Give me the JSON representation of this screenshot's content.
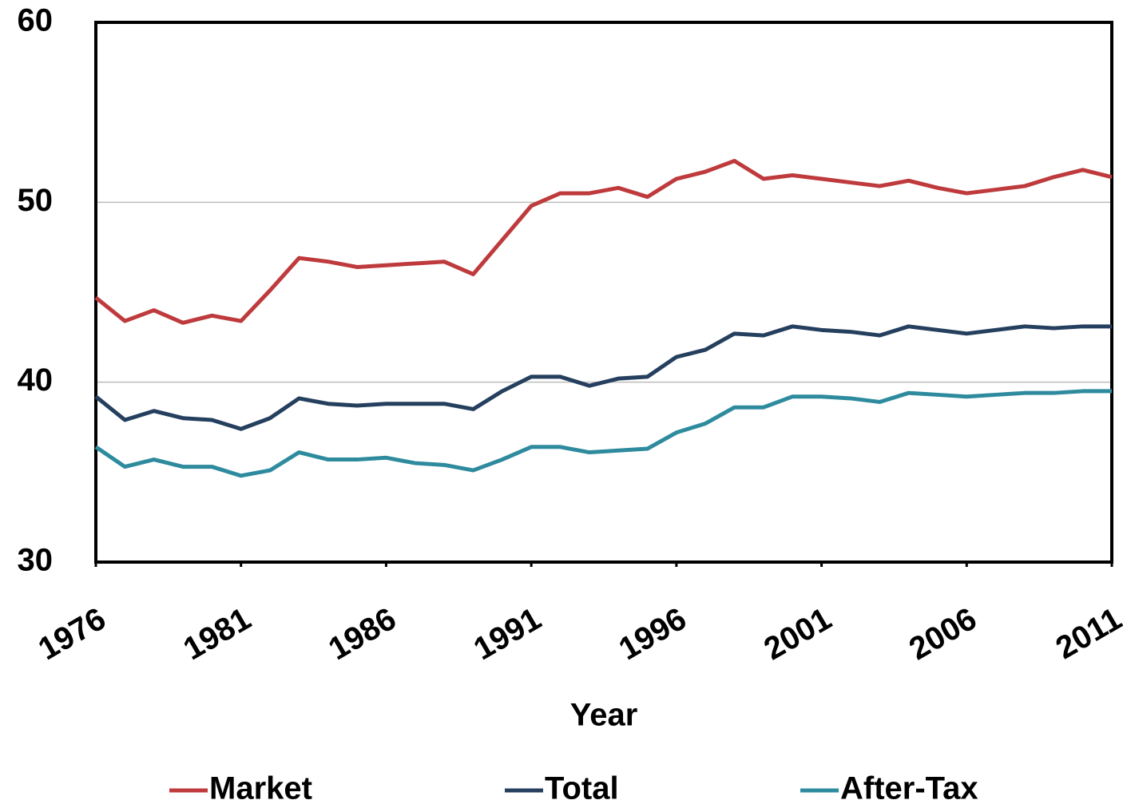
{
  "chart_data": {
    "type": "line",
    "x_label": "Year",
    "x": [
      1976,
      1977,
      1978,
      1979,
      1980,
      1981,
      1982,
      1983,
      1984,
      1985,
      1986,
      1987,
      1988,
      1989,
      1990,
      1991,
      1992,
      1993,
      1994,
      1995,
      1996,
      1997,
      1998,
      1999,
      2000,
      2001,
      2002,
      2003,
      2004,
      2005,
      2006,
      2007,
      2008,
      2009,
      2010,
      2011
    ],
    "series": [
      {
        "name": "Market",
        "color": "#be3a3c",
        "values": [
          44.7,
          43.4,
          44.0,
          43.3,
          43.7,
          43.4,
          45.1,
          46.9,
          46.7,
          46.4,
          46.5,
          46.6,
          46.7,
          46.0,
          47.9,
          49.8,
          50.5,
          50.5,
          50.8,
          50.3,
          51.3,
          51.7,
          52.3,
          51.3,
          51.5,
          51.3,
          51.1,
          50.9,
          51.2,
          50.8,
          50.5,
          50.7,
          50.9,
          51.4,
          51.8,
          51.4
        ]
      },
      {
        "name": "Total",
        "color": "#253f5e",
        "values": [
          39.2,
          37.9,
          38.4,
          38.0,
          37.9,
          37.4,
          38.0,
          39.1,
          38.8,
          38.7,
          38.8,
          38.8,
          38.8,
          38.5,
          39.5,
          40.3,
          40.3,
          39.8,
          40.2,
          40.3,
          41.4,
          41.8,
          42.7,
          42.6,
          43.1,
          42.9,
          42.8,
          42.6,
          43.1,
          42.9,
          42.7,
          42.9,
          43.1,
          43.0,
          43.1,
          43.1
        ]
      },
      {
        "name": "After-Tax",
        "color": "#2e8b9e",
        "values": [
          36.4,
          35.3,
          35.7,
          35.3,
          35.3,
          34.8,
          35.1,
          36.1,
          35.7,
          35.7,
          35.8,
          35.5,
          35.4,
          35.1,
          35.7,
          36.4,
          36.4,
          36.1,
          36.2,
          36.3,
          37.2,
          37.7,
          38.6,
          38.6,
          39.2,
          39.2,
          39.1,
          38.9,
          39.4,
          39.3,
          39.2,
          39.3,
          39.4,
          39.4,
          39.5,
          39.5
        ]
      }
    ],
    "xlim": [
      1976,
      2011
    ],
    "xticks": [
      1976,
      1981,
      1986,
      1991,
      1996,
      2001,
      2006,
      2011
    ],
    "ylim": [
      30,
      60
    ],
    "yticks": [
      30,
      40,
      50,
      60
    ],
    "grid": true,
    "legend": "bottom"
  }
}
